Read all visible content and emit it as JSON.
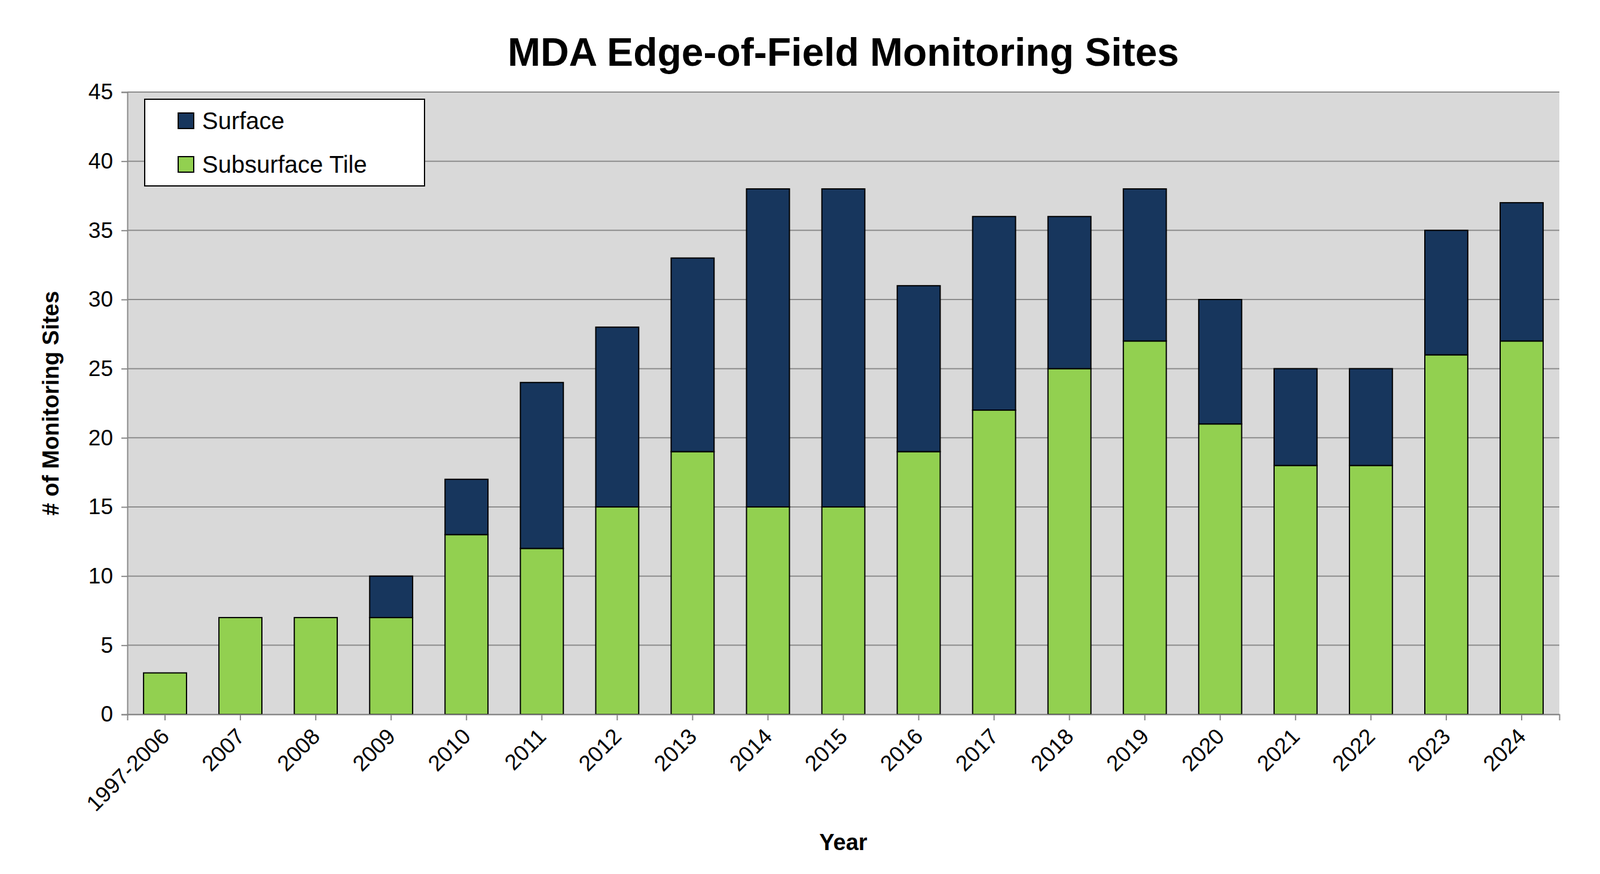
{
  "chart_data": {
    "type": "bar",
    "title": "MDA Edge-of-Field Monitoring Sites",
    "x_label": "Year",
    "y_label": "# of Monitoring Sites",
    "categories": [
      "1997-2006",
      "2007",
      "2008",
      "2009",
      "2010",
      "2011",
      "2012",
      "2013",
      "2014",
      "2015",
      "2016",
      "2017",
      "2018",
      "2019",
      "2020",
      "2021",
      "2022",
      "2023",
      "2024"
    ],
    "series": [
      {
        "name": "Subsurface Tile",
        "color": "#92d050",
        "values": [
          3,
          7,
          7,
          7,
          13,
          12,
          15,
          19,
          15,
          15,
          19,
          22,
          25,
          27,
          21,
          18,
          18,
          26,
          27
        ]
      },
      {
        "name": "Surface",
        "color": "#17365d",
        "values": [
          0,
          0,
          0,
          3,
          4,
          12,
          13,
          14,
          23,
          23,
          12,
          14,
          11,
          11,
          9,
          7,
          7,
          9,
          10
        ]
      }
    ],
    "stacked": true,
    "ylim": [
      0,
      45
    ],
    "yticks": [
      0,
      5,
      10,
      15,
      20,
      25,
      30,
      35,
      40,
      45
    ],
    "grid": true,
    "legend": "upper left"
  }
}
